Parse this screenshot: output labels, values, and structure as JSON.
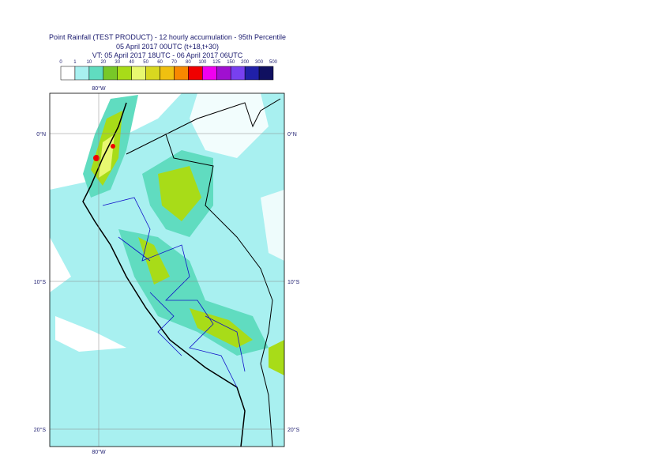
{
  "header": {
    "title": "Point Rainfall (TEST PRODUCT) - 12 hourly accumulation - 95th Percentile",
    "subtitle": "05 April 2017 00UTC (t+18,t+30)",
    "valid_time": "VT: 05 April 2017 18UTC - 06 April 2017 06UTC"
  },
  "legend": {
    "labels": [
      0,
      1,
      10,
      20,
      30,
      40,
      50,
      60,
      70,
      80,
      100,
      125,
      150,
      200,
      300,
      500
    ],
    "colors": [
      "#ffffff",
      "#a8f0f0",
      "#60dcc0",
      "#78c828",
      "#a8dc18",
      "#e8f870",
      "#d8d820",
      "#f0c010",
      "#f88800",
      "#f00000",
      "#f000f0",
      "#a010d0",
      "#7840f0",
      "#2020a8",
      "#101060"
    ]
  },
  "map": {
    "lon_labels": [
      "80°W"
    ],
    "lat_labels": [
      "0°N",
      "10°S",
      "20°S"
    ]
  }
}
